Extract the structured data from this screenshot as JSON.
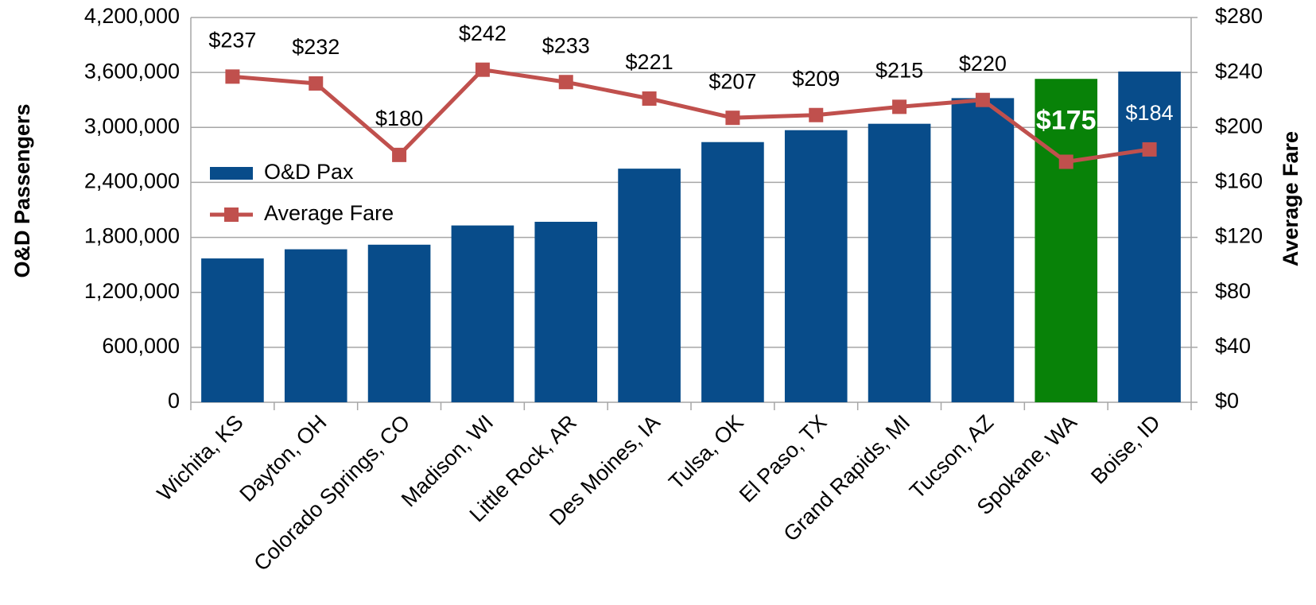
{
  "chart_data": {
    "type": "bar_line",
    "categories": [
      "Wichita, KS",
      "Dayton, OH",
      "Colorado Springs, CO",
      "Madison, WI",
      "Little Rock, AR",
      "Des Moines, IA",
      "Tulsa, OK",
      "El Paso, TX",
      "Grand Rapids, MI",
      "Tucson, AZ",
      "Spokane, WA",
      "Boise, ID"
    ],
    "y_label": "O&D Passengers",
    "y2_label": "Average Fare",
    "ylim": [
      0,
      4200000
    ],
    "yticks": [
      0,
      {
        "value": 600000,
        "label": "600,000"
      },
      {
        "value": 1200000,
        "label": "1,200,000"
      },
      {
        "value": 1800000,
        "label": "1,800,000"
      },
      {
        "value": 2400000,
        "label": "2,400,000"
      },
      {
        "value": 3000000,
        "label": "3,000,000"
      },
      {
        "value": 3600000,
        "label": "3,600,000"
      },
      {
        "value": 4200000,
        "label": "4,200,000"
      }
    ],
    "y2lim": [
      0,
      280
    ],
    "y2ticks": [
      {
        "value": 0,
        "label": "$0"
      },
      {
        "value": 40,
        "label": "$40"
      },
      {
        "value": 80,
        "label": "$80"
      },
      {
        "value": 120,
        "label": "$120"
      },
      {
        "value": 160,
        "label": "$160"
      },
      {
        "value": 200,
        "label": "$200"
      },
      {
        "value": 240,
        "label": "$240"
      },
      {
        "value": 280,
        "label": "$280"
      }
    ],
    "grid": true,
    "legend": "left",
    "series": [
      {
        "name": "O&D Pax",
        "type": "bar",
        "color": "#084c8a",
        "colors": [
          "#084c8a",
          "#084c8a",
          "#084c8a",
          "#084c8a",
          "#084c8a",
          "#084c8a",
          "#084c8a",
          "#084c8a",
          "#084c8a",
          "#084c8a",
          "#088208",
          "#084c8a"
        ],
        "values": [
          1570000,
          1670000,
          1720000,
          1930000,
          1970000,
          2550000,
          2840000,
          2970000,
          3040000,
          3320000,
          3530000,
          3610000
        ]
      },
      {
        "name": "Average Fare",
        "type": "line",
        "axis": "y2",
        "color": "#c0504d",
        "values": [
          237,
          232,
          180,
          242,
          233,
          221,
          207,
          209,
          215,
          220,
          175,
          184
        ],
        "value_labels": [
          "$237",
          "$232",
          "$180",
          "$242",
          "$233",
          "$221",
          "$207",
          "$209",
          "$215",
          "$220",
          "$175",
          "$184"
        ],
        "value_label_colors": [
          "#000000",
          "#000000",
          "#000000",
          "#000000",
          "#000000",
          "#000000",
          "#000000",
          "#000000",
          "#000000",
          "#000000",
          "#ffffff",
          "#ffffff"
        ]
      }
    ]
  }
}
